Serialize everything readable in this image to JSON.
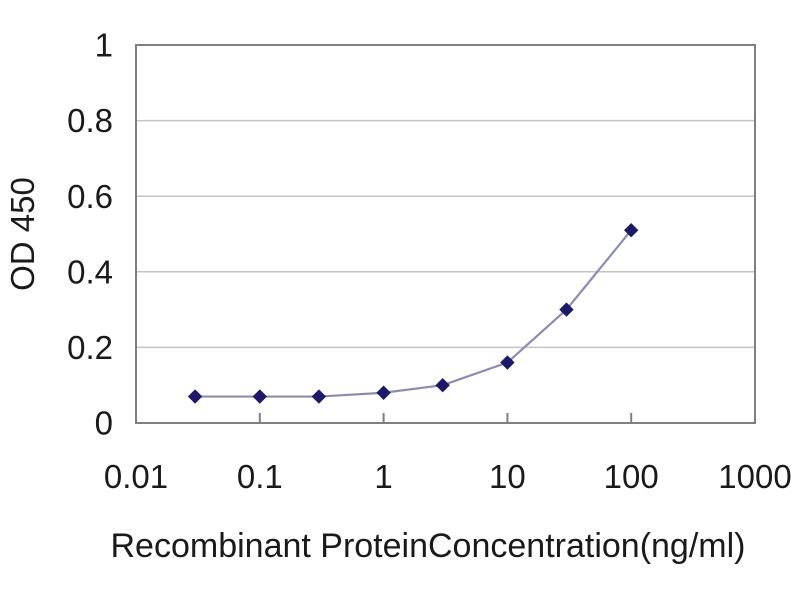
{
  "figure": {
    "background": "#ffffff"
  },
  "chart_data": {
    "type": "line",
    "x": [
      0.03,
      0.1,
      0.3,
      1,
      3,
      10,
      30,
      100
    ],
    "y": [
      0.07,
      0.07,
      0.07,
      0.08,
      0.1,
      0.16,
      0.3,
      0.51
    ],
    "title": "",
    "xlabel": "Recombinant ProteinConcentration(ng/ml)",
    "ylabel": "OD 450",
    "x_scale": "log",
    "xlim": [
      0.01,
      1000
    ],
    "ylim": [
      0,
      1
    ],
    "x_ticks": [
      "0.01",
      "0.1",
      "1",
      "10",
      "100",
      "1000"
    ],
    "x_tick_values": [
      0.01,
      0.1,
      1,
      10,
      100,
      1000
    ],
    "y_ticks": [
      "0",
      "0.2",
      "0.4",
      "0.6",
      "0.8",
      "1"
    ],
    "y_tick_values": [
      0,
      0.2,
      0.4,
      0.6,
      0.8,
      1
    ],
    "grid": "horizontal",
    "legend": "none",
    "marker": "diamond",
    "colors": {
      "marker": "#1f1a66",
      "line": "#8c8caf",
      "axis": "#7f7f7f",
      "gridline": "#c4c4c4",
      "text": "#1a1a1a",
      "plot_background": "#ffffff"
    }
  }
}
